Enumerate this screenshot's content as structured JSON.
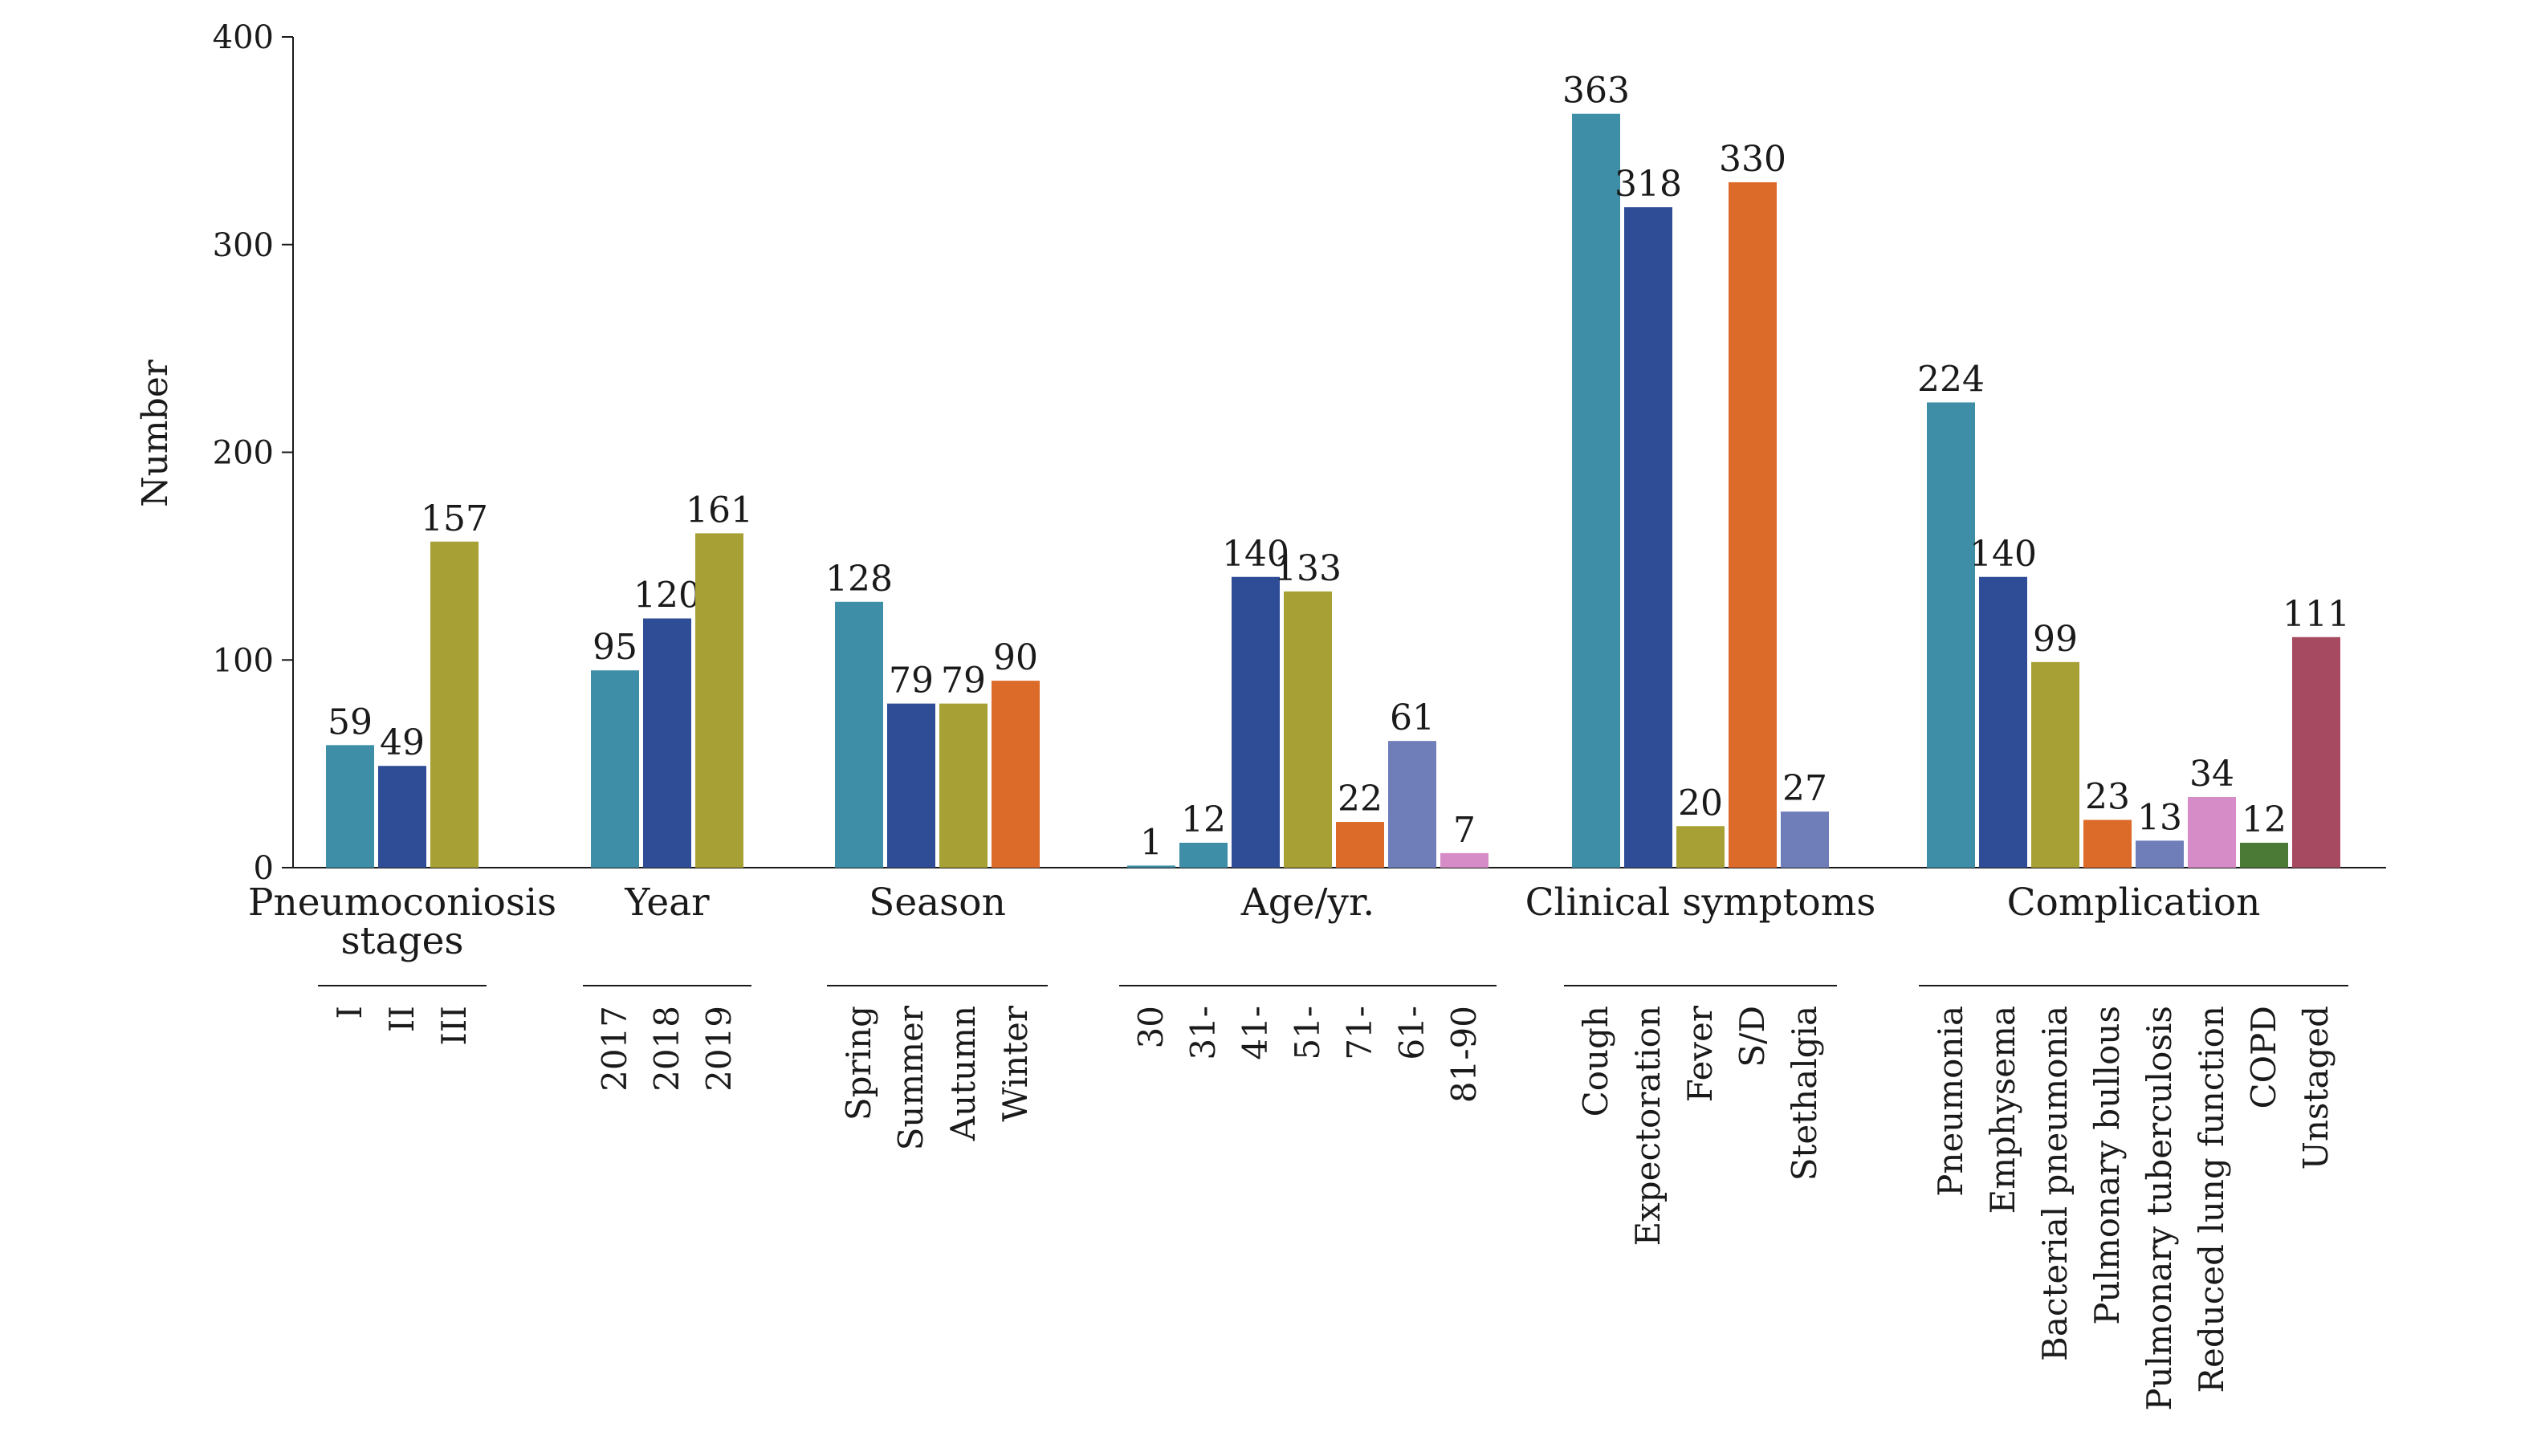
{
  "chart_data": {
    "type": "bar",
    "title": "",
    "ylabel": "Number",
    "xlabel": "",
    "ylim": [
      0,
      400
    ],
    "yticks": [
      0,
      100,
      200,
      300,
      400
    ],
    "grid": false,
    "legend": "none",
    "groups": [
      {
        "name": "Pneumoconiosis stages",
        "categories": [
          "I",
          "II",
          "III"
        ],
        "values": [
          59,
          49,
          157
        ],
        "colors": [
          "#3d8ea6",
          "#2f4d96",
          "#a7a034"
        ]
      },
      {
        "name": "Year",
        "categories": [
          "2017",
          "2018",
          "2019"
        ],
        "values": [
          95,
          120,
          161
        ],
        "colors": [
          "#3d8ea6",
          "#2f4d96",
          "#a7a034"
        ]
      },
      {
        "name": "Season",
        "categories": [
          "Spring",
          "Summer",
          "Autumn",
          "Winter"
        ],
        "values": [
          128,
          79,
          79,
          90
        ],
        "colors": [
          "#3d8ea6",
          "#2f4d96",
          "#a7a034",
          "#dc6a28"
        ]
      },
      {
        "name": "Age/yr.",
        "categories": [
          "30",
          "31-",
          "41-",
          "51-",
          "71-",
          "61-",
          "81-90"
        ],
        "values": [
          1,
          12,
          140,
          133,
          22,
          61,
          7
        ],
        "colors": [
          "#3d8ea6",
          "#3d8ea6",
          "#2f4d96",
          "#a7a034",
          "#dc6a28",
          "#6f7db8",
          "#d68cc6"
        ]
      },
      {
        "name": "Clinical symptoms",
        "categories": [
          "Cough",
          "Expectoration",
          "Fever",
          "S/D",
          "Stethalgia"
        ],
        "values": [
          363,
          318,
          20,
          330,
          27
        ],
        "colors": [
          "#3d8ea6",
          "#2f4d96",
          "#a7a034",
          "#dc6a28",
          "#6f7db8"
        ]
      },
      {
        "name": "Complication",
        "categories": [
          "Pneumonia",
          "Emphysema",
          "Bacterial pneumonia",
          "Pulmonary bullous",
          "Pulmonary tuberculosis",
          "Reduced lung function",
          "COPD",
          "Unstaged"
        ],
        "values": [
          224,
          140,
          99,
          23,
          13,
          34,
          12,
          111
        ],
        "colors": [
          "#3d8ea6",
          "#2f4d96",
          "#a7a034",
          "#dc6a28",
          "#6f7db8",
          "#d68cc6",
          "#4a7a36",
          "#a64a62"
        ]
      }
    ]
  }
}
